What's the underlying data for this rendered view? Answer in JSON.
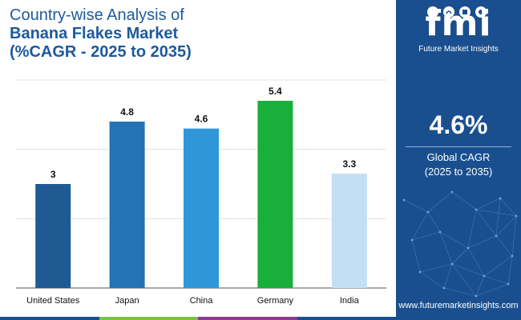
{
  "header": {
    "line1": "Country-wise Analysis of",
    "line2": "Banana Flakes Market",
    "line3": "(%CAGR - 2025 to 2035)"
  },
  "brand": {
    "logo_text": "fmi",
    "name": "Future Market Insights",
    "website": "www.futuremarketinsights.com"
  },
  "summary": {
    "cagr_value": "4.6%",
    "cagr_label_line1": "Global CAGR",
    "cagr_label_line2": "(2025 to 2035)"
  },
  "colors": {
    "title": "#1d5a9e",
    "sidebar": "#1a4f8f",
    "strip": [
      "#1a4f8f",
      "#7cc242",
      "#8e3a93",
      "#1a4f8f"
    ]
  },
  "chart_data": {
    "type": "bar",
    "categories": [
      "United States",
      "Japan",
      "China",
      "Germany",
      "India"
    ],
    "values": [
      3,
      4.8,
      4.6,
      5.4,
      3.3
    ],
    "value_labels": [
      "3",
      "4.8",
      "4.6",
      "5.4",
      "3.3"
    ],
    "bar_colors": [
      "#1f5a93",
      "#2473b4",
      "#2f97d9",
      "#1aae3a",
      "#c3e0f3"
    ],
    "ylim": [
      0,
      6
    ],
    "grid": true,
    "title": "",
    "xlabel": "",
    "ylabel": ""
  }
}
